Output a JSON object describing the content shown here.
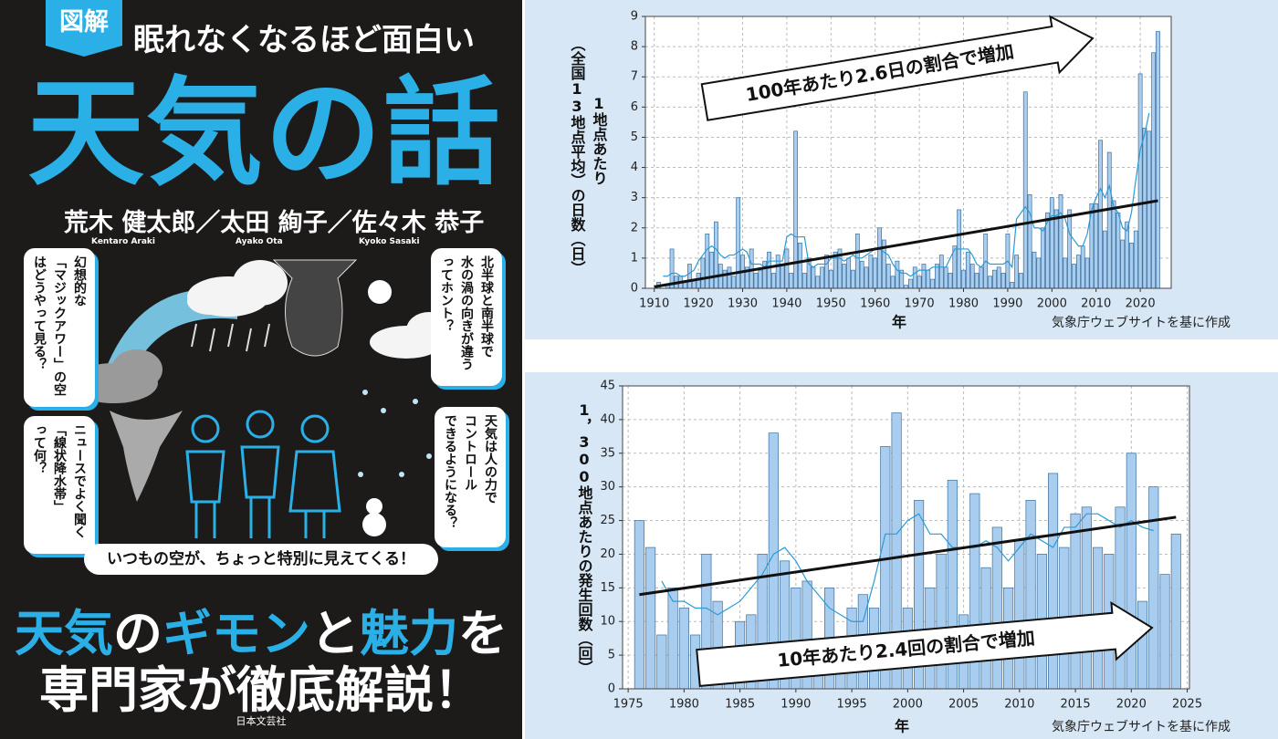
{
  "cover": {
    "badge": "図解",
    "series_title": "眠れなくなるほど面白い",
    "title": "天気の話",
    "authors": "荒木 健太郎／太田 絢子／佐々木 恭子",
    "romaji": [
      "Kentaro Araki",
      "Ayako Ota",
      "Kyoko Sasaki"
    ],
    "bubbles": [
      [
        "幻想的な",
        "「マジックアワー」の空",
        "はどうやって見る？"
      ],
      [
        "北半球と南半球で",
        "水の渦の向きが違う",
        "ってホント？"
      ],
      [
        "ニュースでよく聞く",
        "「線状降水帯」",
        "って何？"
      ],
      [
        "天気は人の力で",
        "コントロール",
        "できるようになる？"
      ]
    ],
    "banner": "いつもの空が、ちょっと特別に見えてくる！",
    "catch": [
      [
        "天気",
        "の",
        "ギモン",
        "と",
        "魅力",
        "を"
      ],
      [
        "専門家",
        "が",
        "徹底解説！"
      ]
    ],
    "publisher": "日本文芸社"
  },
  "chart_data": [
    {
      "type": "bar",
      "xlabel": "年",
      "ylabel": [
        "1地点あたり",
        "（全国13地点平均）の日数（日）"
      ],
      "annotation": "100年あたり2.6日の割合で増加",
      "source": "気象庁ウェブサイトを基に作成",
      "x": [
        1910,
        1911,
        1912,
        1913,
        1914,
        1915,
        1916,
        1917,
        1918,
        1919,
        1920,
        1921,
        1922,
        1923,
        1924,
        1925,
        1926,
        1927,
        1928,
        1929,
        1930,
        1931,
        1932,
        1933,
        1934,
        1935,
        1936,
        1937,
        1938,
        1939,
        1940,
        1941,
        1942,
        1943,
        1944,
        1945,
        1946,
        1947,
        1948,
        1949,
        1950,
        1951,
        1952,
        1953,
        1954,
        1955,
        1956,
        1957,
        1958,
        1959,
        1960,
        1961,
        1962,
        1963,
        1964,
        1965,
        1966,
        1967,
        1968,
        1969,
        1970,
        1971,
        1972,
        1973,
        1974,
        1975,
        1976,
        1977,
        1978,
        1979,
        1980,
        1981,
        1982,
        1983,
        1984,
        1985,
        1986,
        1987,
        1988,
        1989,
        1990,
        1991,
        1992,
        1993,
        1994,
        1995,
        1996,
        1997,
        1998,
        1999,
        2000,
        2001,
        2002,
        2003,
        2004,
        2005,
        2006,
        2007,
        2008,
        2009,
        2010,
        2011,
        2012,
        2013,
        2014,
        2015,
        2016,
        2017,
        2018,
        2019,
        2020,
        2021,
        2022,
        2023,
        2024
      ],
      "series": [
        {
          "kind": "bar",
          "color": "#a9cdef",
          "edge_color": "#3c6f9c",
          "values": [
            0,
            0.2,
            0,
            0.1,
            1.3,
            0.4,
            0.4,
            0.2,
            0.8,
            0.3,
            0.5,
            1.0,
            1.8,
            1.2,
            2.2,
            0.8,
            0.6,
            0.7,
            0.4,
            3.0,
            1.1,
            0.7,
            1.3,
            0.5,
            0.6,
            0.9,
            1.2,
            0.5,
            1.1,
            0.8,
            1.3,
            0.5,
            5.2,
            1.5,
            0.5,
            1.0,
            0.7,
            0.4,
            0.7,
            1.1,
            0.6,
            1.2,
            1.3,
            0.8,
            1.0,
            0.6,
            1.8,
            0.9,
            0.7,
            1.1,
            1.0,
            2.0,
            1.6,
            0.8,
            0.4,
            0.9,
            0.6,
            0.1,
            0.3,
            0.7,
            0.4,
            0.8,
            0.6,
            0.3,
            0.8,
            1.1,
            0.7,
            0.5,
            1.4,
            2.6,
            0.6,
            1.2,
            0.8,
            0.5,
            0.7,
            1.8,
            0.4,
            0.6,
            0.7,
            0.5,
            1.8,
            0.2,
            1.1,
            0.5,
            6.5,
            3.1,
            1.2,
            1.0,
            2.0,
            2.5,
            3.0,
            2.6,
            3.1,
            1.0,
            2.6,
            0.8,
            1.1,
            1.4,
            1.0,
            2.8,
            2.8,
            4.9,
            1.9,
            4.5,
            2.9,
            2.5,
            1.6,
            2.2,
            1.5,
            1.9,
            7.1,
            5.3,
            5.2,
            7.8,
            8.5
          ]
        },
        {
          "kind": "line",
          "color": "#2a9bd6",
          "width": 1.2,
          "values": [
            null,
            null,
            0.4,
            0.4,
            0.5,
            0.5,
            0.4,
            0.4,
            0.5,
            0.6,
            0.9,
            1.1,
            1.3,
            1.4,
            1.3,
            1.1,
            1.0,
            1.1,
            1.1,
            1.2,
            1.3,
            1.2,
            0.8,
            0.8,
            0.8,
            0.7,
            0.9,
            0.9,
            0.9,
            0.9,
            1.7,
            1.8,
            1.7,
            1.7,
            1.7,
            0.8,
            0.7,
            0.8,
            0.8,
            0.8,
            1.0,
            1.0,
            1.0,
            0.9,
            1.0,
            1.1,
            1.0,
            1.0,
            1.1,
            1.2,
            1.3,
            1.3,
            1.2,
            1.1,
            0.8,
            0.6,
            0.5,
            0.5,
            0.4,
            0.5,
            0.6,
            0.6,
            0.6,
            0.7,
            0.7,
            0.7,
            0.7,
            1.0,
            1.3,
            1.3,
            1.3,
            1.3,
            1.1,
            0.8,
            0.7,
            0.9,
            0.8,
            0.8,
            0.8,
            0.8,
            0.9,
            0.7,
            2.3,
            2.5,
            2.7,
            2.5,
            2.0,
            2.0,
            1.9,
            2.2,
            2.4,
            2.4,
            2.5,
            2.3,
            1.8,
            1.6,
            1.4,
            1.4,
            1.8,
            2.6,
            3.0,
            3.3,
            3.0,
            3.4,
            2.7,
            2.5,
            2.0,
            1.9,
            2.5,
            3.6,
            4.6,
            5.1,
            5.8,
            null,
            null
          ]
        },
        {
          "kind": "line",
          "color": "#111111",
          "width": 3,
          "x": [
            1910,
            2024
          ],
          "values": [
            0.05,
            2.9
          ]
        }
      ],
      "xlim": [
        1908,
        2027
      ],
      "xticks": [
        1910,
        1920,
        1930,
        1940,
        1950,
        1960,
        1970,
        1980,
        1990,
        2000,
        2010,
        2020
      ],
      "ylim": [
        0,
        9
      ],
      "yticks": [
        0,
        1,
        2,
        3,
        4,
        5,
        6,
        7,
        8,
        9
      ],
      "grid": true
    },
    {
      "type": "bar",
      "xlabel": "年",
      "ylabel": [
        "1，300地点あたりの発生回数（回）"
      ],
      "annotation": "10年あたり2.4回の割合で増加",
      "source": "気象庁ウェブサイトを基に作成",
      "x": [
        1976,
        1977,
        1978,
        1979,
        1980,
        1981,
        1982,
        1983,
        1984,
        1985,
        1986,
        1987,
        1988,
        1989,
        1990,
        1991,
        1992,
        1993,
        1994,
        1995,
        1996,
        1997,
        1998,
        1999,
        2000,
        2001,
        2002,
        2003,
        2004,
        2005,
        2006,
        2007,
        2008,
        2009,
        2010,
        2011,
        2012,
        2013,
        2014,
        2015,
        2016,
        2017,
        2018,
        2019,
        2020,
        2021,
        2022,
        2023,
        2024
      ],
      "series": [
        {
          "kind": "bar",
          "color": "#a9cdef",
          "edge_color": "#3c6f9c",
          "values": [
            25,
            21,
            8,
            15,
            12,
            8,
            20,
            13,
            6,
            10,
            11,
            20,
            38,
            19,
            15,
            16,
            7,
            15,
            7,
            12,
            14,
            12,
            36,
            41,
            12,
            28,
            15,
            20,
            31,
            11,
            29,
            18,
            24,
            15,
            22,
            28,
            20,
            32,
            21,
            26,
            27,
            21,
            20,
            27,
            35,
            13,
            30,
            17,
            23
          ]
        },
        {
          "kind": "line",
          "color": "#2a9bd6",
          "width": 1.2,
          "values": [
            null,
            null,
            16,
            13,
            13,
            12,
            12,
            11,
            12,
            13,
            15,
            17,
            20,
            21,
            19,
            16,
            14,
            12,
            11,
            10,
            10,
            16,
            23,
            23,
            25,
            26,
            23,
            23,
            21,
            21,
            21,
            22,
            21,
            19,
            21,
            23,
            22,
            21,
            24,
            24,
            26,
            26,
            25,
            24,
            25,
            24,
            23.5,
            null,
            null
          ]
        },
        {
          "kind": "line",
          "color": "#111111",
          "width": 3,
          "x": [
            1976,
            2024
          ],
          "values": [
            14,
            25.5
          ]
        }
      ],
      "xlim": [
        1974.5,
        2025.2
      ],
      "xticks": [
        1975,
        1980,
        1985,
        1990,
        1995,
        2000,
        2005,
        2010,
        2015,
        2020,
        2025
      ],
      "ylim": [
        0,
        45
      ],
      "yticks": [
        0,
        5,
        10,
        15,
        20,
        25,
        30,
        35,
        40,
        45
      ],
      "grid": true
    }
  ]
}
